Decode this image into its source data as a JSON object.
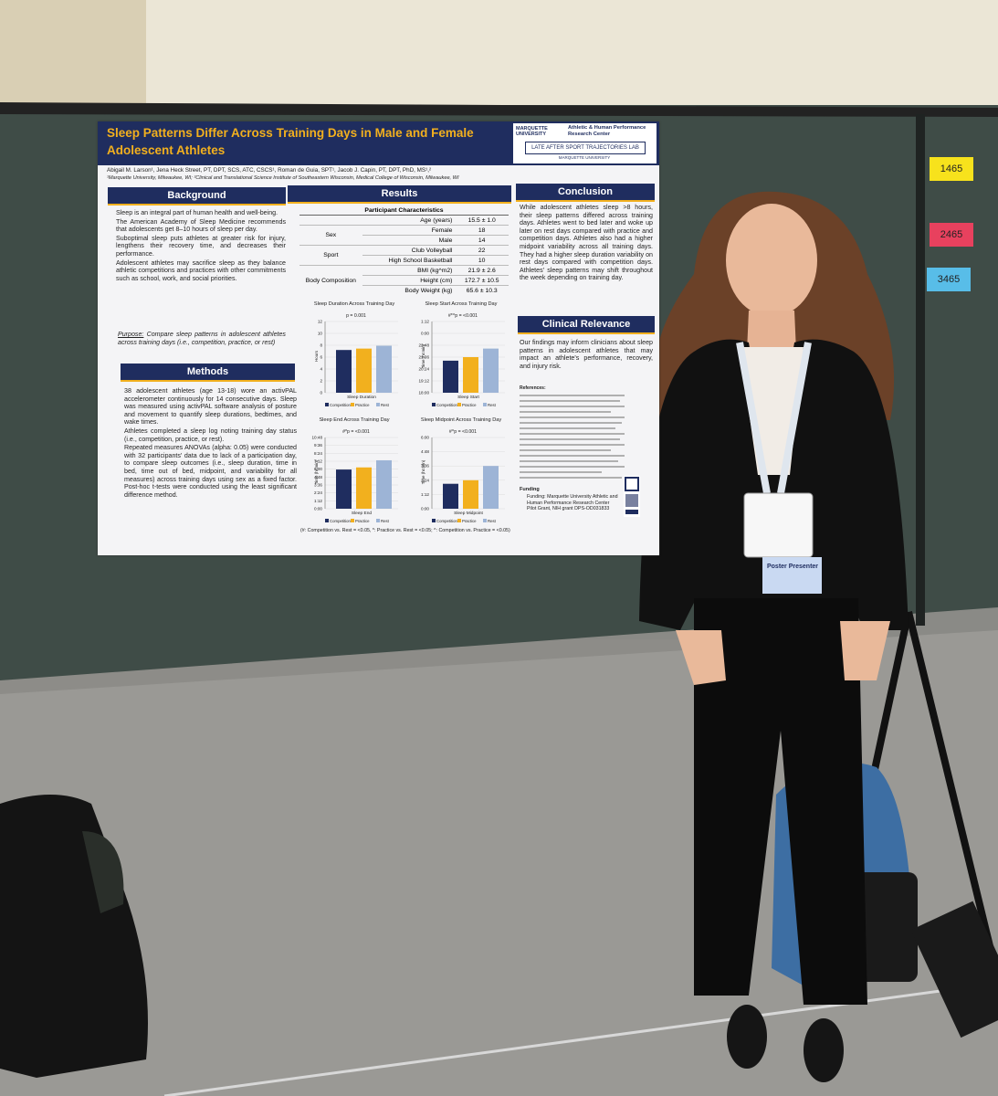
{
  "poster": {
    "title": "Sleep Patterns Differ Across Training Days in Male and Female Adolescent Athletes",
    "institution": "MARQUETTE UNIVERSITY",
    "center": "Athletic & Human Performance Research Center",
    "lab": "LATE AFTER SPORT TRAJECTORIES LAB",
    "lab_sub": "MARQUETTE UNIVERSITY",
    "authors": "Abigail M. Larson¹, Jena Heck Street, PT, DPT, SCS, ATC, CSCS¹, Roman de Guia, SPT¹, Jacob J. Capin, PT, DPT, PhD, MS¹,²",
    "affiliations": "¹Marquette University, Milwaukee, WI; ²Clinical and Translational Science Institute of Southeastern Wisconsin, Medical College of Wisconsin, Milwaukee, WI",
    "background": {
      "heading": "Background",
      "bullets": [
        "Sleep is an integral part of human health and well-being.",
        "The American Academy of Sleep Medicine recommends that adolescents get 8–10 hours of sleep per day.",
        "Suboptimal sleep puts athletes at greater risk for injury, lengthens their recovery time, and decreases their performance.",
        "Adolescent athletes may sacrifice sleep as they balance athletic competitions and practices with other commitments such as school, work, and social priorities."
      ],
      "purpose_label": "Purpose:",
      "purpose": "Compare sleep patterns in adolescent athletes across training days (i.e., competition, practice, or rest)"
    },
    "methods": {
      "heading": "Methods",
      "bullets": [
        "38 adolescent athletes (age 13-18) wore an activPAL accelerometer continuously for 14 consecutive days. Sleep was measured using activPAL software analysis of posture and movement to quantify sleep durations, bedtimes, and wake times.",
        "Athletes completed a sleep log noting training day status (i.e., competition, practice, or rest).",
        "Repeated measures ANOVAs (alpha: 0.05) were conducted with 32 participants' data due to lack of a participation day, to compare sleep outcomes (i.e., sleep duration, time in bed, time out of bed, midpoint, and variability for all measures) across training days using sex as a fixed factor. Post-hoc t-tests were conducted using the least significant difference method."
      ]
    },
    "results": {
      "heading": "Results",
      "table": {
        "title": "Participant Characteristics",
        "groups": [
          {
            "rows": [
              {
                "label": "Age (years)",
                "value": "15.5 ± 1.0"
              }
            ]
          },
          {
            "name": "Sex",
            "rows": [
              {
                "label": "Female",
                "value": "18"
              },
              {
                "label": "Male",
                "value": "14"
              }
            ]
          },
          {
            "name": "Sport",
            "rows": [
              {
                "label": "Club Volleyball",
                "value": "22"
              },
              {
                "label": "High School Basketball",
                "value": "10"
              }
            ]
          },
          {
            "name": "Body Composition",
            "rows": [
              {
                "label": "BMI (kg^m2)",
                "value": "21.9 ± 2.6"
              },
              {
                "label": "Height (cm)",
                "value": "172.7 ± 10.5"
              },
              {
                "label": "Body Weight (kg)",
                "value": "65.6 ± 10.3"
              }
            ]
          }
        ]
      },
      "legend": [
        "Competition",
        "Practice",
        "Rest"
      ],
      "charts": [
        {
          "title": "Sleep Duration Across Training Day",
          "p": "p = 0.001",
          "xlabel": "Sleep Duration",
          "ylabel": "Hours",
          "yticks": [
            "12",
            "10",
            "8",
            "6",
            "4",
            "2",
            "0"
          ]
        },
        {
          "title": "Sleep Start Across Training Day",
          "p": "#*^p = <0.001",
          "xlabel": "Sleep Start",
          "ylabel": "Time (hr:min)",
          "yticks": [
            "1:12",
            "0:00",
            "22:48",
            "21:36",
            "20:24",
            "19:12",
            "18:00"
          ]
        },
        {
          "title": "Sleep End Across Training Day",
          "p": "#*p = <0.001",
          "xlabel": "Sleep End",
          "ylabel": "Time (hr:min)",
          "yticks": [
            "10:48",
            "9:36",
            "8:24",
            "7:12",
            "6:00",
            "4:48",
            "3:36",
            "2:24",
            "1:12",
            "0:00"
          ]
        },
        {
          "title": "Sleep Midpoint Across Training Day",
          "p": "#^p = <0.001",
          "xlabel": "Sleep Midpoint",
          "ylabel": "Time (hr:min)",
          "yticks": [
            "6:00",
            "4:48",
            "3:36",
            "2:24",
            "1:12",
            "0:00"
          ]
        }
      ],
      "footnote": "(#: Competition vs. Rest = <0.05, *: Practice vs. Rest = <0.05; ^: Competition vs. Practice = <0.05)"
    },
    "conclusion": {
      "heading": "Conclusion",
      "text": "While adolescent athletes sleep >8 hours, their sleep patterns differed across training days. Athletes went to bed later and woke up later on rest days compared with practice and competition days. Athletes also had a higher midpoint variability across all training days. They had a higher sleep duration variability on rest days compared with competition days. Athletes' sleep patterns may shift throughout the week depending on training day."
    },
    "clinical": {
      "heading": "Clinical Relevance",
      "text": "Our findings may inform clinicians about sleep patterns in adolescent athletes that may impact an athlete's performance, recovery, and injury risk."
    },
    "references_heading": "References:",
    "funding": {
      "heading": "Funding",
      "text": "Funding: Marquette University Athletic and Human Performance Research Center Pilot Grant, NIH grant DPS-OD031833"
    }
  },
  "tags": [
    "1465",
    "2465",
    "3465"
  ],
  "badge": "Poster Presenter"
}
